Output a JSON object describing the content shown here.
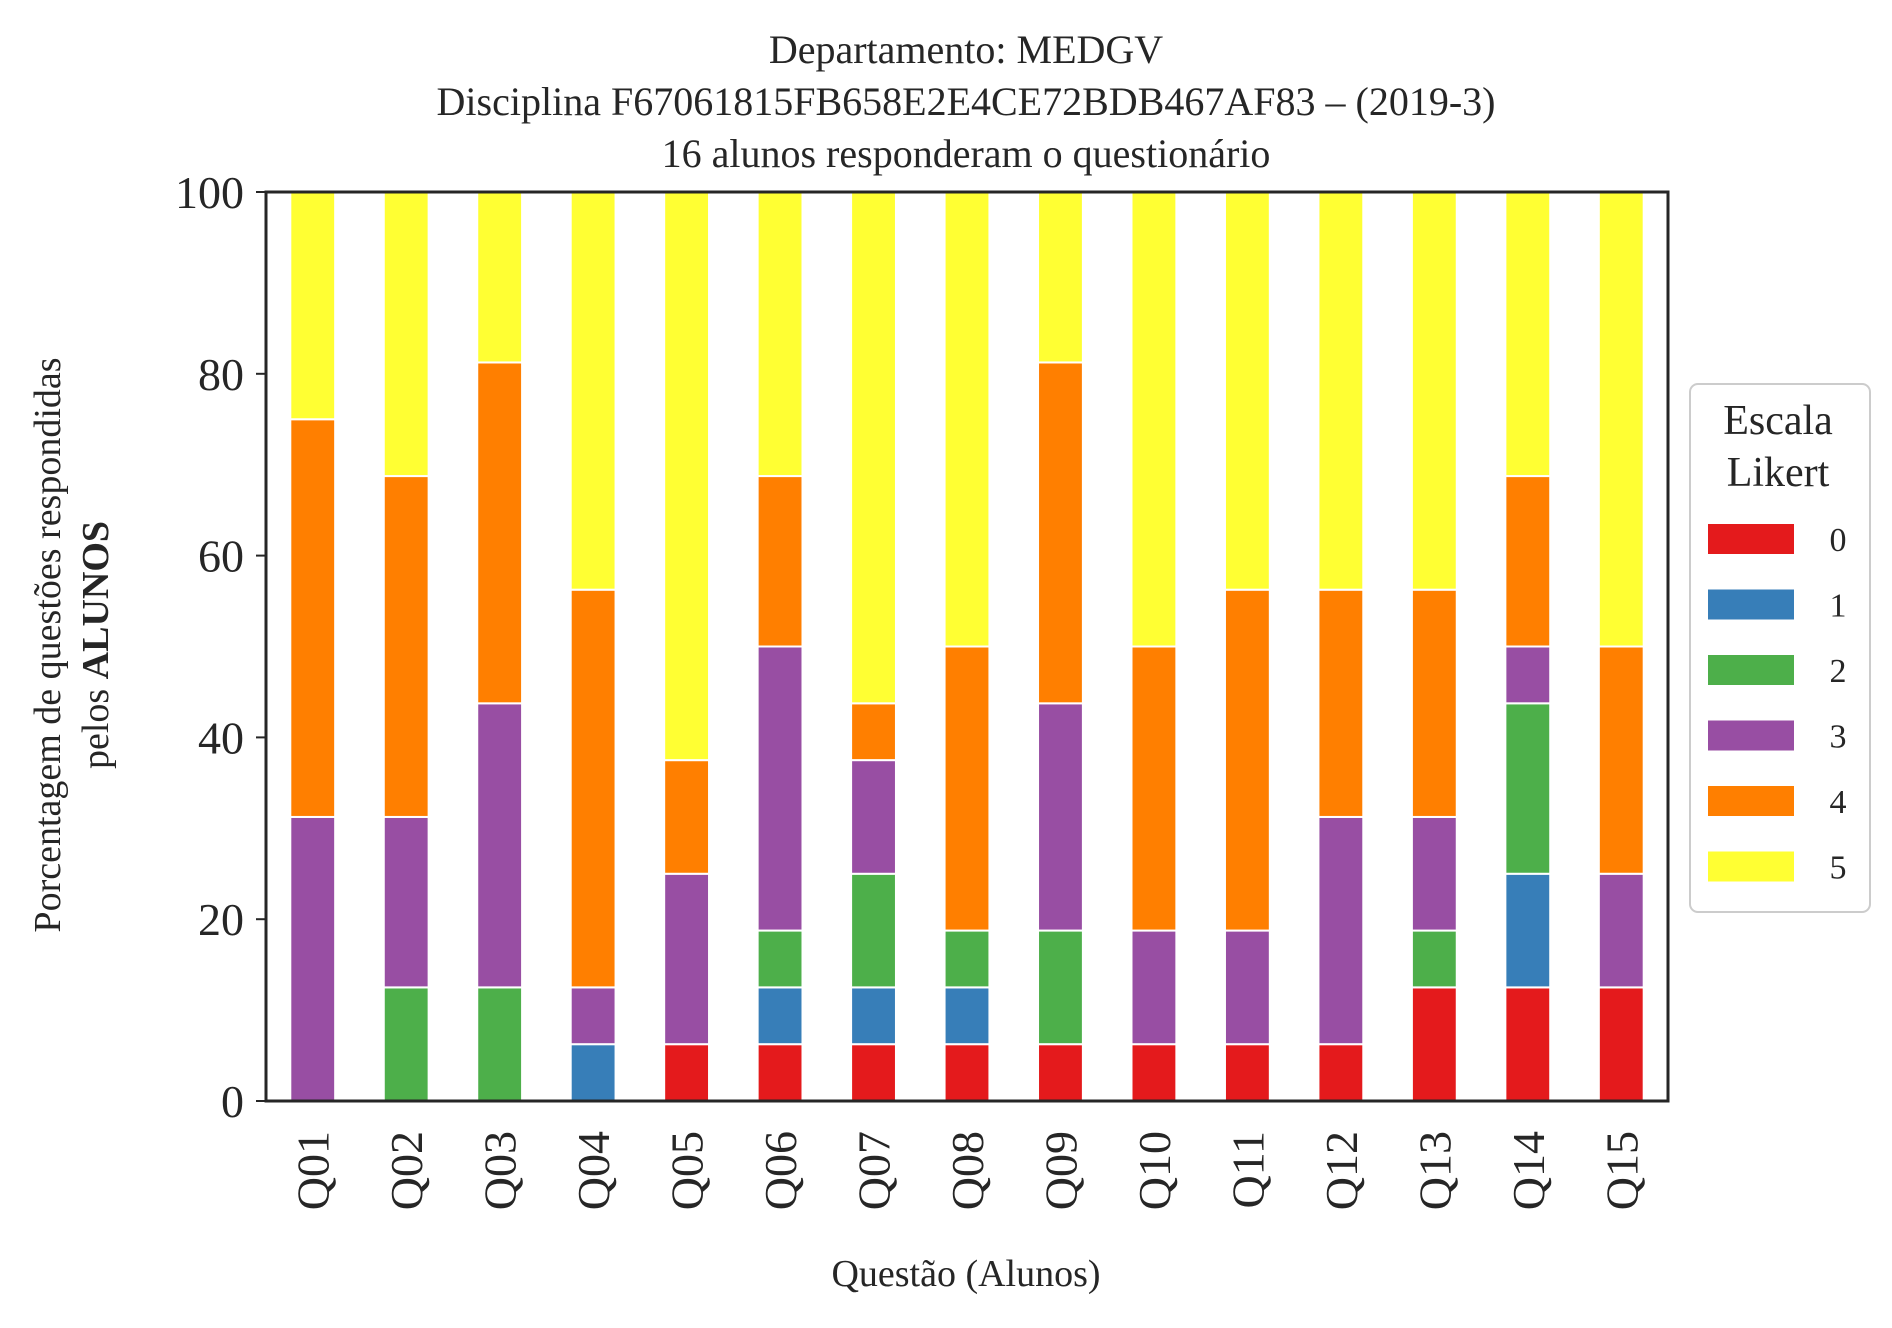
{
  "chart_data": {
    "type": "bar",
    "stacked": true,
    "title_lines": [
      "Departamento: MEDGV",
      "Disciplina F67061815FB658E2E4CE72BDB467AF83 – (2019-3)",
      "16 alunos responderam o questionário"
    ],
    "xlabel": "Questão (Alunos)",
    "ylabel_line1": "Porcentagem de questões respondidas",
    "ylabel_line2_prefix": "pelos ",
    "ylabel_line2_bold": "ALUNOS",
    "ylim": [
      0,
      100
    ],
    "yticks": [
      "0",
      "20",
      "40",
      "60",
      "80",
      "100"
    ],
    "grid": false,
    "legend_position": "right-center",
    "legend_title_lines": [
      "Escala",
      "Likert"
    ],
    "categories": [
      "Q01",
      "Q02",
      "Q03",
      "Q04",
      "Q05",
      "Q06",
      "Q07",
      "Q08",
      "Q09",
      "Q10",
      "Q11",
      "Q12",
      "Q13",
      "Q14",
      "Q15"
    ],
    "series": [
      {
        "name": "0",
        "color": "#e41a1c",
        "values": [
          0,
          0,
          0,
          0,
          6.25,
          6.25,
          6.25,
          6.25,
          6.25,
          6.25,
          6.25,
          6.25,
          12.5,
          12.5,
          12.5
        ]
      },
      {
        "name": "1",
        "color": "#377eb8",
        "values": [
          0,
          0,
          0,
          6.25,
          0,
          6.25,
          6.25,
          6.25,
          0,
          0,
          0,
          0,
          0,
          12.5,
          0
        ]
      },
      {
        "name": "2",
        "color": "#4daf4a",
        "values": [
          0,
          12.5,
          12.5,
          0,
          0,
          6.25,
          12.5,
          6.25,
          12.5,
          0,
          0,
          0,
          6.25,
          18.75,
          0
        ]
      },
      {
        "name": "3",
        "color": "#984ea3",
        "values": [
          31.25,
          18.75,
          31.25,
          6.25,
          18.75,
          31.25,
          12.5,
          0,
          25,
          12.5,
          12.5,
          25,
          12.5,
          6.25,
          12.5
        ]
      },
      {
        "name": "4",
        "color": "#ff7f00",
        "values": [
          43.75,
          37.5,
          37.5,
          43.75,
          12.5,
          18.75,
          6.25,
          31.25,
          37.5,
          31.25,
          37.5,
          25,
          25,
          18.75,
          25
        ]
      },
      {
        "name": "5",
        "color": "#ffff33",
        "values": [
          25,
          31.25,
          18.75,
          43.75,
          62.5,
          31.25,
          56.25,
          50,
          18.75,
          50,
          43.75,
          43.75,
          43.75,
          31.25,
          50
        ]
      }
    ]
  }
}
